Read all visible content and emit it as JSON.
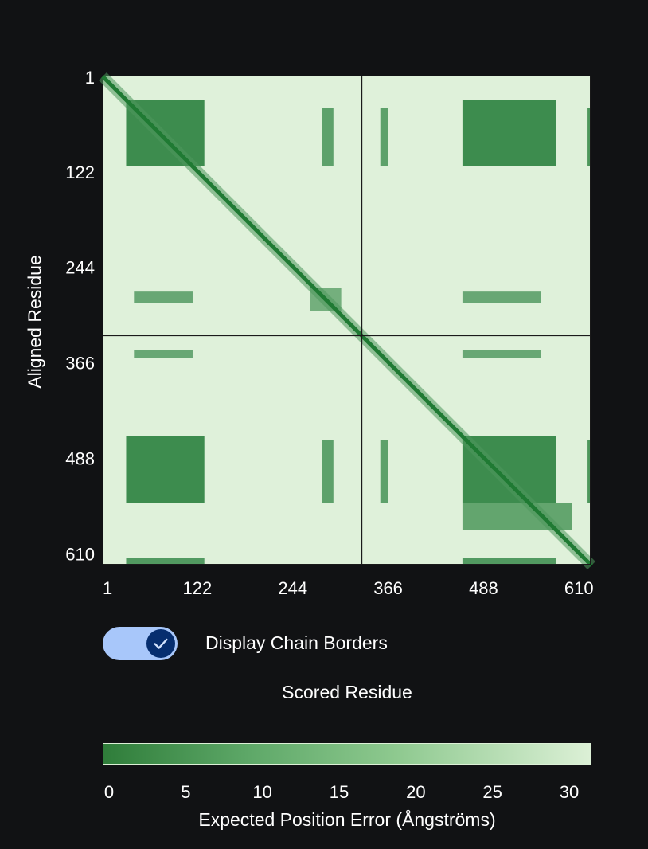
{
  "chart_data": {
    "type": "heatmap",
    "xlabel": "Scored Residue",
    "ylabel": "Aligned Residue",
    "x_ticks": [
      "1",
      "122",
      "244",
      "366",
      "488",
      "610"
    ],
    "y_ticks": [
      "1",
      "122",
      "244",
      "366",
      "488",
      "610"
    ],
    "n_residues": 625,
    "chain_borders": [
      331,
      625
    ],
    "value_range": [
      0,
      31.75
    ],
    "blocks": [
      {
        "x": [
          30,
          130
        ],
        "y": [
          30,
          115
        ],
        "value": 2
      },
      {
        "x": [
          460,
          580
        ],
        "y": [
          30,
          115
        ],
        "value": 2
      },
      {
        "x": [
          30,
          130
        ],
        "y": [
          460,
          545
        ],
        "value": 2
      },
      {
        "x": [
          460,
          580
        ],
        "y": [
          460,
          545
        ],
        "value": 2
      },
      {
        "x": [
          280,
          295
        ],
        "y": [
          40,
          115
        ],
        "value": 8
      },
      {
        "x": [
          355,
          365
        ],
        "y": [
          40,
          115
        ],
        "value": 8
      },
      {
        "x": [
          280,
          295
        ],
        "y": [
          465,
          545
        ],
        "value": 8
      },
      {
        "x": [
          355,
          365
        ],
        "y": [
          465,
          545
        ],
        "value": 8
      },
      {
        "x": [
          620,
          625
        ],
        "y": [
          40,
          115
        ],
        "value": 5
      },
      {
        "x": [
          620,
          625
        ],
        "y": [
          465,
          545
        ],
        "value": 5
      },
      {
        "x": [
          40,
          115
        ],
        "y": [
          275,
          290
        ],
        "value": 10
      },
      {
        "x": [
          460,
          560
        ],
        "y": [
          275,
          290
        ],
        "value": 10
      },
      {
        "x": [
          40,
          115
        ],
        "y": [
          350,
          360
        ],
        "value": 10
      },
      {
        "x": [
          460,
          560
        ],
        "y": [
          350,
          360
        ],
        "value": 10
      },
      {
        "x": [
          30,
          130
        ],
        "y": [
          615,
          625
        ],
        "value": 6
      },
      {
        "x": [
          460,
          580
        ],
        "y": [
          615,
          625
        ],
        "value": 6
      },
      {
        "x": [
          265,
          305
        ],
        "y": [
          270,
          300
        ],
        "value": 12
      },
      {
        "x": [
          460,
          600
        ],
        "y": [
          545,
          580
        ],
        "value": 9
      }
    ],
    "colorbar": {
      "ticks": [
        "0",
        "5",
        "10",
        "15",
        "20",
        "25",
        "30"
      ],
      "label": "Expected Position Error (Ångströms)"
    }
  },
  "toggle": {
    "label": "Display Chain Borders",
    "checked": true
  },
  "colors": {
    "low": "#1f7a33",
    "high": "#dff1da",
    "border": "#1a1a1a",
    "toggle_track": "#a8c7fa",
    "toggle_knob": "#062e6f"
  }
}
